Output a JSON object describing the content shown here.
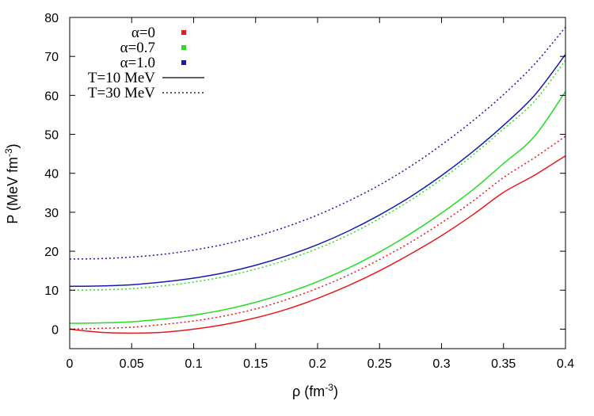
{
  "chart_data": {
    "type": "line",
    "xlabel": "ρ (fm",
    "xlabel_exp": "-3",
    "xlabel_close": ")",
    "ylabel": "P (MeV fm",
    "ylabel_exp": "-3",
    "ylabel_close": ")",
    "xlim": [
      0,
      0.4
    ],
    "ylim": [
      -5,
      80
    ],
    "xticks": [
      0,
      0.05,
      0.1,
      0.15,
      0.2,
      0.25,
      0.3,
      0.35,
      0.4
    ],
    "xtick_labels": [
      "0",
      "0.05",
      "0.1",
      "0.15",
      "0.2",
      "0.25",
      "0.3",
      "0.35",
      "0.4"
    ],
    "yticks": [
      0,
      10,
      20,
      30,
      40,
      50,
      60,
      70,
      80
    ],
    "ytick_labels": [
      "0",
      "10",
      "20",
      "30",
      "40",
      "50",
      "60",
      "70",
      "80"
    ],
    "x": [
      0,
      0.025,
      0.05,
      0.075,
      0.1,
      0.125,
      0.15,
      0.175,
      0.2,
      0.225,
      0.25,
      0.275,
      0.3,
      0.325,
      0.35,
      0.375,
      0.4
    ],
    "legend": {
      "alphas": [
        {
          "label": "α=0",
          "color": "#e41a1c"
        },
        {
          "label": "α=0.7",
          "color": "#22dd22"
        },
        {
          "label": "α=1.0",
          "color": "#1a1aaa"
        }
      ],
      "styles": [
        {
          "label": "T=10 MeV",
          "dash": "solid"
        },
        {
          "label": "T=30 MeV",
          "dash": "dotted"
        }
      ]
    },
    "series": [
      {
        "name": "α=0, T=10 MeV",
        "color": "#e41a1c",
        "dash": "solid",
        "values": [
          0,
          -0.8,
          -1.0,
          -0.8,
          0,
          1.2,
          2.9,
          5.1,
          7.9,
          11.2,
          15.0,
          19.3,
          24.0,
          29.3,
          35.1,
          39.5,
          44.5
        ]
      },
      {
        "name": "α=0, T=30 MeV",
        "color": "#e41a1c",
        "dash": "dotted",
        "values": [
          0,
          0.2,
          0.5,
          1.2,
          2.1,
          3.4,
          5.2,
          7.6,
          10.5,
          13.9,
          17.9,
          22.3,
          27.3,
          32.8,
          38.9,
          44.0,
          49.5
        ]
      },
      {
        "name": "α=0.7, T=10 MeV",
        "color": "#22dd22",
        "dash": "solid",
        "values": [
          1.5,
          1.6,
          1.9,
          2.6,
          3.6,
          5.0,
          6.9,
          9.3,
          12.2,
          15.7,
          19.8,
          24.5,
          29.8,
          35.7,
          42.5,
          49.5,
          61.0
        ]
      },
      {
        "name": "α=0.7, T=30 MeV",
        "color": "#22dd22",
        "dash": "dotted",
        "values": [
          10.0,
          10.1,
          10.4,
          11.1,
          12.1,
          13.5,
          15.4,
          17.8,
          20.7,
          24.2,
          28.4,
          33.1,
          38.5,
          44.6,
          51.4,
          58.5,
          69.0
        ]
      },
      {
        "name": "α=1.0, T=10 MeV",
        "color": "#1a1aaa",
        "dash": "solid",
        "values": [
          11.0,
          11.1,
          11.4,
          12.1,
          13.1,
          14.5,
          16.4,
          18.8,
          21.7,
          25.2,
          29.3,
          34.0,
          39.4,
          45.5,
          52.3,
          60.0,
          70.5
        ]
      },
      {
        "name": "α=1.0, T=30 MeV",
        "color": "#1a1aaa",
        "dash": "dotted",
        "values": [
          18.0,
          18.1,
          18.5,
          19.2,
          20.3,
          21.8,
          23.8,
          26.3,
          29.3,
          32.9,
          37.0,
          41.8,
          47.3,
          53.4,
          60.2,
          68.0,
          77.5
        ]
      }
    ]
  }
}
